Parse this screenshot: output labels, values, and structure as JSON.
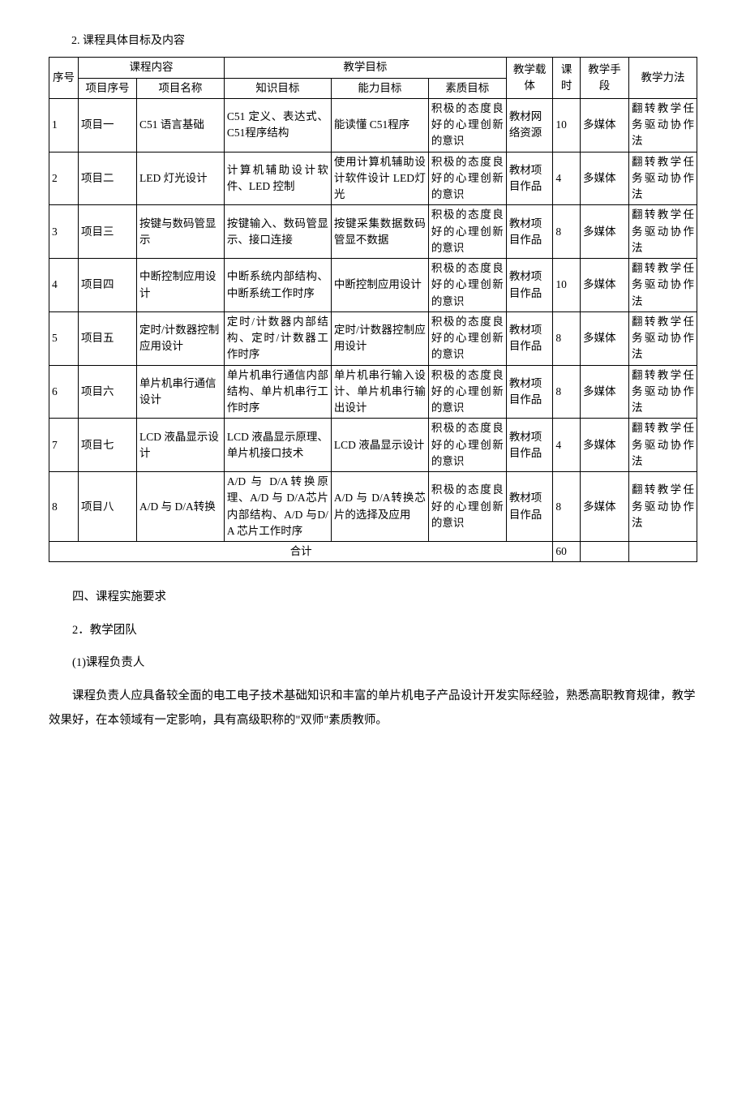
{
  "sectionTitle": "2. 课程具体目标及内容",
  "table": {
    "header": {
      "seq": "序号",
      "courseContent": "课程内容",
      "projNo": "项目序号",
      "projName": "项目名称",
      "teachGoal": "教学目标",
      "knowledge": "知识目标",
      "ability": "能力目标",
      "quality": "素质目标",
      "carrier": "教学载体",
      "hours": "课时",
      "means": "教学手段",
      "method": "教学力法"
    },
    "rows": [
      {
        "seq": "1",
        "projNo": "项目一",
        "projName": "C51 语言基础",
        "knowledge": "C51 定义、表达式、C51程序结构",
        "ability": "能读懂 C51程序",
        "quality": "积极的态度良好的心理创新的意识",
        "carrier": "教材网络资源",
        "hours": "10",
        "means": "多媒体",
        "method": "翻转教学任务驱动协作法"
      },
      {
        "seq": "2",
        "projNo": "项目二",
        "projName": "LED 灯光设计",
        "knowledge": "计算机辅助设计软件、LED 控制",
        "ability": "使用计算机辅助设计软件设计 LED灯光",
        "quality": "积极的态度良好的心理创新的意识",
        "carrier": "教材项目作品",
        "hours": "4",
        "means": "多媒体",
        "method": "翻转教学任务驱动协作法"
      },
      {
        "seq": "3",
        "projNo": "项目三",
        "projName": "按键与数码管显示",
        "knowledge": "按键输入、数码管显示、接口连接",
        "ability": "按键采集数据数码管显不数据",
        "quality": "积极的态度良好的心理创新的意识",
        "carrier": "教材项目作品",
        "hours": "8",
        "means": "多媒体",
        "method": "翻转教学任务驱动协作法"
      },
      {
        "seq": "4",
        "projNo": "项目四",
        "projName": "中断控制应用设计",
        "knowledge": "中断系统内部结构、中断系统工作时序",
        "ability": "中断控制应用设计",
        "quality": "积极的态度良好的心理创新的意识",
        "carrier": "教材项目作品",
        "hours": "10",
        "means": "多媒体",
        "method": "翻转教学任务驱动协作法"
      },
      {
        "seq": "5",
        "projNo": "项目五",
        "projName": "定时/计数器控制应用设计",
        "knowledge": "定时/计数器内部结构、定时/计数器工作时序",
        "ability": "定时/计数器控制应用设计",
        "quality": "积极的态度良好的心理创新的意识",
        "carrier": "教材项目作品",
        "hours": "8",
        "means": "多媒体",
        "method": "翻转教学任务驱动协作法"
      },
      {
        "seq": "6",
        "projNo": "项目六",
        "projName": "单片机串行通信设计",
        "knowledge": "单片机串行通信内部结构、单片机串行工作时序",
        "ability": "单片机串行输入设计、单片机串行输出设计",
        "quality": "积极的态度良好的心理创新的意识",
        "carrier": "教材项目作品",
        "hours": "8",
        "means": "多媒体",
        "method": "翻转教学任务驱动协作法"
      },
      {
        "seq": "7",
        "projNo": "项目七",
        "projName": "LCD 液晶显示设计",
        "knowledge": "LCD 液晶显示原理、单片机接口技术",
        "ability": "LCD 液晶显示设计",
        "quality": "积极的态度良好的心理创新的意识",
        "carrier": "教材项目作品",
        "hours": "4",
        "means": "多媒体",
        "method": "翻转教学任务驱动协作法"
      },
      {
        "seq": "8",
        "projNo": "项目八",
        "projName": "A/D 与 D/A转换",
        "knowledge": "A/D 与 D/A转换原理、A/D 与 D/A芯片内部结构、A/D 与D/A 芯片工作时序",
        "ability": "A/D 与 D/A转换芯片的选择及应用",
        "quality": "积极的态度良好的心理创新的意识",
        "carrier": "教材项目作品",
        "hours": "8",
        "means": "多媒体",
        "method": "翻转教学任务驱动协作法"
      }
    ],
    "total": {
      "label": "合计",
      "hours": "60"
    }
  },
  "body": {
    "h4": "四、课程实施要求",
    "sub2": "2．教学团队",
    "sub2a": "(1)课程负责人",
    "para1": "课程负责人应具备较全面的电工电子技术基础知识和丰富的单片机电子产品设计开发实际经验，熟悉高职教育规律，教学效果好，在本领域有一定影响，具有高级职称的\"双师\"素质教师。"
  }
}
